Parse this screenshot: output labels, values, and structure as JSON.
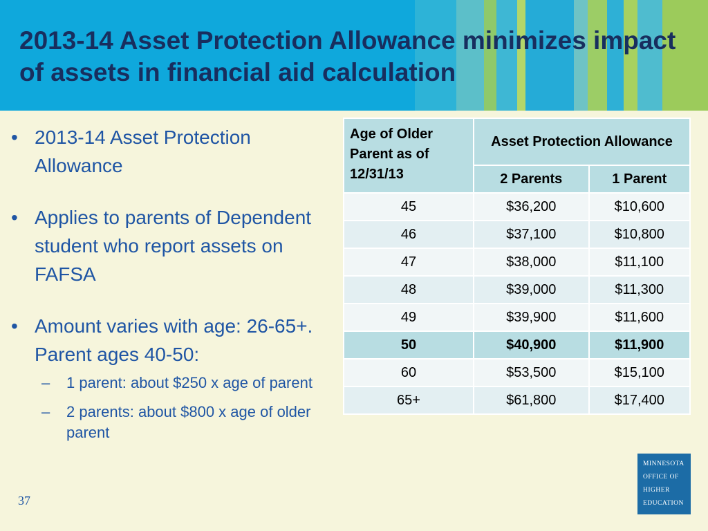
{
  "slide": {
    "title": "2013-14 Asset Protection Allowance minimizes impact of assets in financial aid calculation",
    "page_number": "37"
  },
  "bullets": [
    {
      "text": "2013-14 Asset Protection Allowance"
    },
    {
      "text": "Applies to parents of Dependent student who report assets on FAFSA"
    },
    {
      "text": "Amount varies with age: 26-65+.  Parent ages 40-50:",
      "sub": [
        "1 parent: about $250 x age of parent",
        "2 parents: about $800 x age of older parent"
      ]
    }
  ],
  "table": {
    "age_header": "Age of Older Parent as of 12/31/13",
    "apa_header": "Asset Protection Allowance",
    "col_two": "2 Parents",
    "col_one": "1 Parent",
    "rows": [
      {
        "age": "45",
        "two": "$36,200",
        "one": "$10,600"
      },
      {
        "age": "46",
        "two": "$37,100",
        "one": "$10,800"
      },
      {
        "age": "47",
        "two": "$38,000",
        "one": "$11,100"
      },
      {
        "age": "48",
        "two": "$39,000",
        "one": "$11,300"
      },
      {
        "age": "49",
        "two": "$39,900",
        "one": "$11,600"
      },
      {
        "age": "50",
        "two": "$40,900",
        "one": "$11,900"
      },
      {
        "age": "60",
        "two": "$53,500",
        "one": "$15,100"
      },
      {
        "age": "65+",
        "two": "$61,800",
        "one": "$17,400"
      }
    ]
  },
  "logo": {
    "line1": "Minnesota",
    "line2": "Office of",
    "line3": "Higher",
    "line4": "Education"
  },
  "colors": {
    "header_blue": "#0fa8dc",
    "title_navy": "#182e5e",
    "bullet_blue": "#1f55a4",
    "table_header": "#b8dde2",
    "background": "#f6f5dc"
  }
}
